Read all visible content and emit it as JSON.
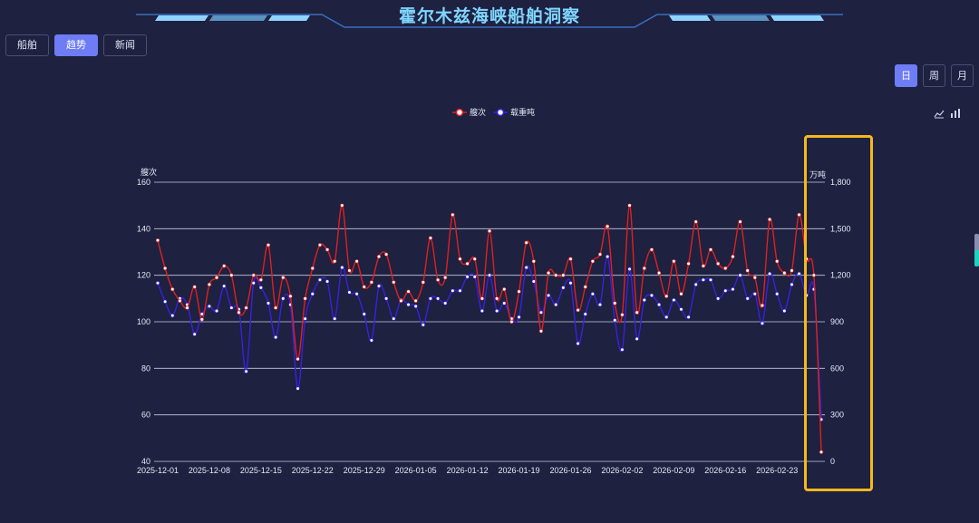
{
  "header": {
    "title": "霍尔木兹海峡船舶洞察"
  },
  "tabs": [
    {
      "label": "船舶",
      "active": false
    },
    {
      "label": "趋势",
      "active": true
    },
    {
      "label": "新闻",
      "active": false
    }
  ],
  "periods": [
    {
      "label": "日",
      "active": true
    },
    {
      "label": "周",
      "active": false
    },
    {
      "label": "月",
      "active": false
    }
  ],
  "chart_icons": [
    "line-chart-icon",
    "bar-chart-icon"
  ],
  "colors": {
    "accent": "#6e7cf5",
    "title": "#7fd6ff",
    "series1": "#e02020",
    "series2": "#3a20e0",
    "highlight": "#f5b81c"
  },
  "chart_data": {
    "type": "line",
    "legend_position": "top-center",
    "grid": true,
    "left_axis": {
      "label": "艘次",
      "min": 40,
      "max": 160,
      "ticks": [
        "40",
        "60",
        "80",
        "100",
        "120",
        "140",
        "160"
      ]
    },
    "right_axis": {
      "label": "万吨",
      "min": 0,
      "max": 1800,
      "ticks": [
        "0",
        "300",
        "600",
        "900",
        "1,200",
        "1,500",
        "1,800"
      ]
    },
    "x_start": "2025-12-01",
    "x_end": "2026-03-01",
    "x_ticks": [
      "2025-12-01",
      "2025-12-08",
      "2025-12-15",
      "2025-12-22",
      "2025-12-29",
      "2026-01-05",
      "2026-01-12",
      "2026-01-19",
      "2026-01-26",
      "2026-02-02",
      "2026-02-09",
      "2026-02-16",
      "2026-02-23"
    ],
    "series": [
      {
        "name": "艘次",
        "axis": "left",
        "color": "#e02020",
        "values": [
          135,
          123,
          114,
          109,
          106,
          115,
          101,
          116,
          119,
          124,
          120,
          104,
          106,
          120,
          118,
          133,
          106,
          119,
          111,
          84,
          110,
          123,
          133,
          131,
          126,
          150,
          122,
          126,
          115,
          117,
          128,
          129,
          117,
          109,
          113,
          109,
          117,
          136,
          118,
          119,
          146,
          127,
          125,
          127,
          110,
          139,
          110,
          114,
          100,
          113,
          134,
          126,
          96,
          121,
          120,
          120,
          127,
          105,
          115,
          126,
          129,
          141,
          108,
          103,
          150,
          104,
          123,
          131,
          121,
          111,
          126,
          112,
          125,
          143,
          124,
          131,
          125,
          123,
          128,
          143,
          122,
          119,
          107,
          144,
          126,
          121,
          122,
          146,
          127,
          120,
          44
        ]
      },
      {
        "name": "载重吨",
        "axis": "right",
        "color": "#3a20e0",
        "values": [
          1150,
          1030,
          940,
          1050,
          1010,
          820,
          950,
          1000,
          970,
          1130,
          990,
          980,
          580,
          1150,
          1120,
          1020,
          800,
          1050,
          1010,
          470,
          920,
          1080,
          1170,
          1160,
          920,
          1250,
          1090,
          1080,
          950,
          780,
          1130,
          1050,
          920,
          1040,
          1010,
          1000,
          880,
          1050,
          1050,
          1020,
          1100,
          1100,
          1190,
          1190,
          970,
          1200,
          970,
          1020,
          920,
          930,
          1250,
          1160,
          960,
          1070,
          1010,
          1120,
          1150,
          760,
          950,
          1080,
          1010,
          1320,
          910,
          720,
          1240,
          790,
          1040,
          1070,
          1010,
          930,
          1040,
          980,
          930,
          1140,
          1170,
          1170,
          1050,
          1100,
          1110,
          1200,
          1050,
          1080,
          890,
          1210,
          1080,
          970,
          1140,
          1210,
          1070,
          1110,
          270
        ]
      }
    ]
  }
}
